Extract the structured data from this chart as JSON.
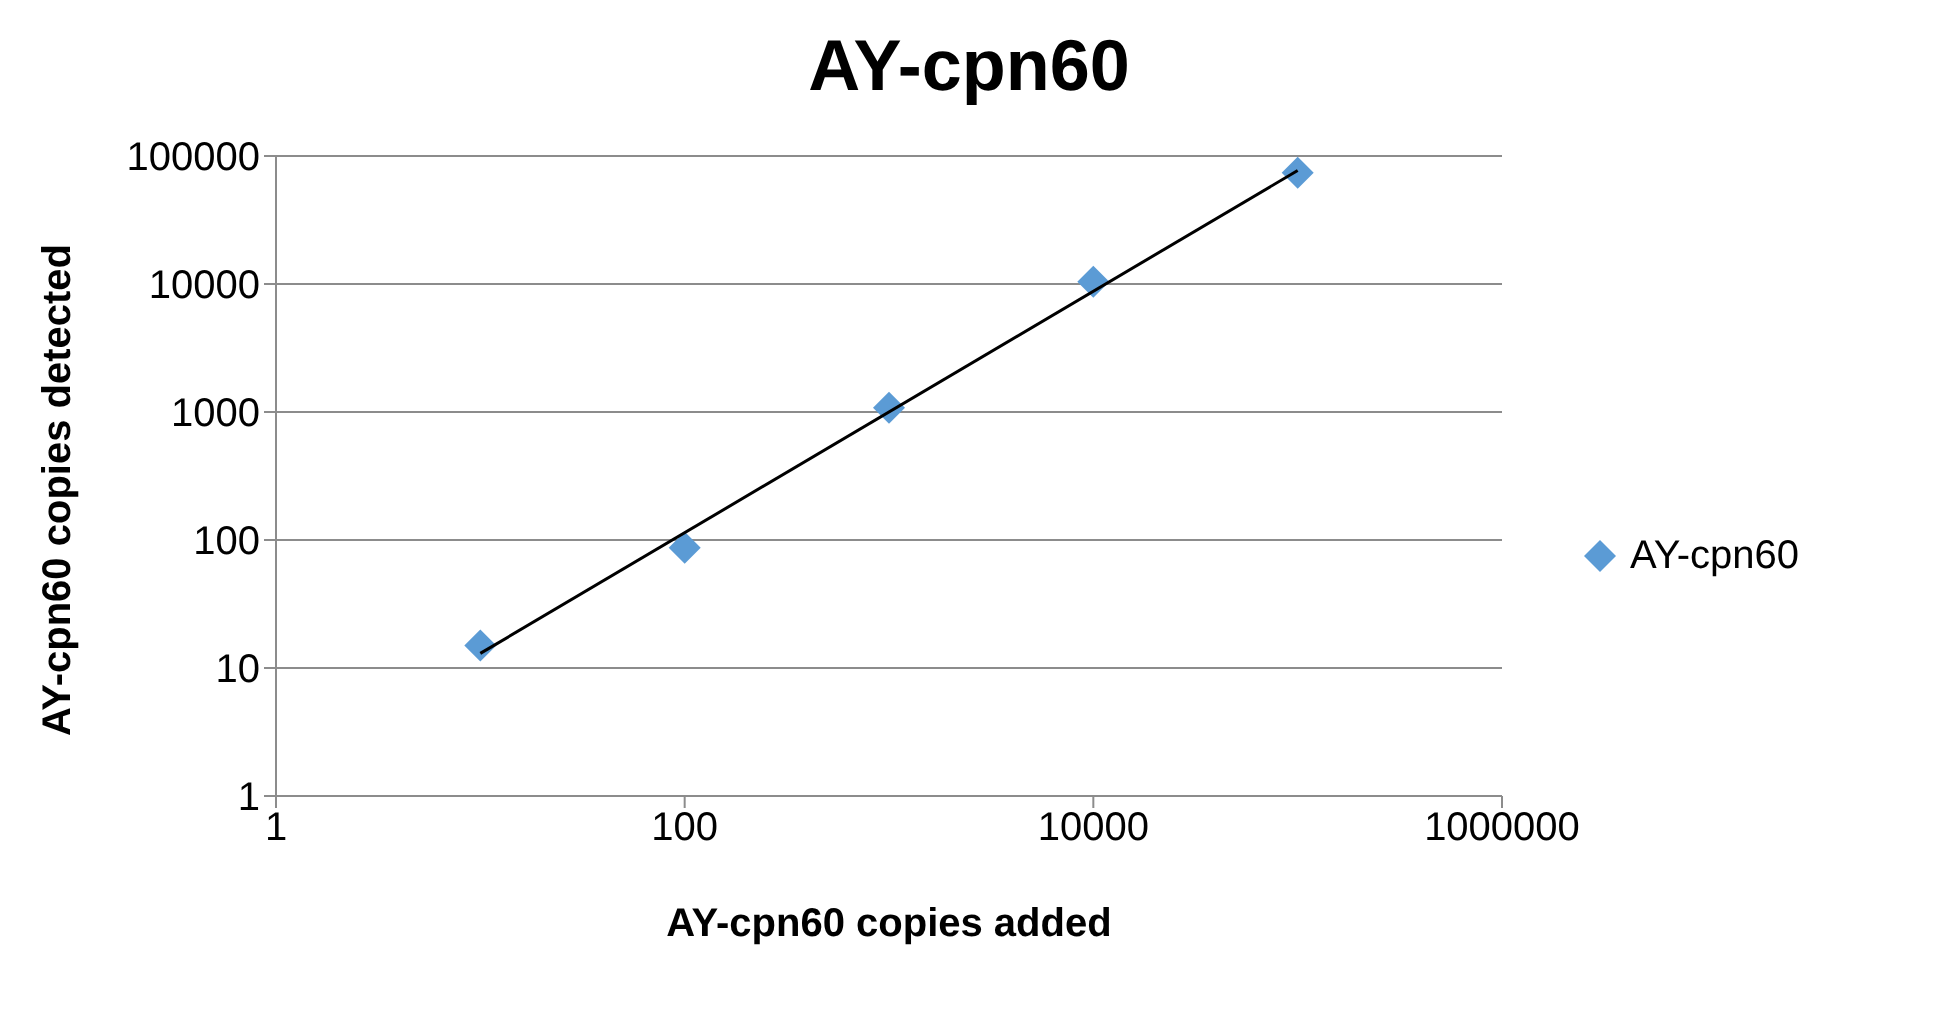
{
  "chart_data": {
    "type": "scatter",
    "title": "AY-cpn60",
    "xlabel": "AY-cpn60 copies added",
    "ylabel": "AY-cpn60 copies detected",
    "log": "xy",
    "xlim": [
      1,
      1000000
    ],
    "xticks": [
      1,
      100,
      10000,
      1000000
    ],
    "ylim": [
      1,
      100000
    ],
    "yticks": [
      1,
      10,
      100,
      1000,
      10000,
      100000
    ],
    "grid": "y",
    "legend": "right",
    "marker": "diamond",
    "x": [
      10,
      100,
      1000,
      10000,
      100000
    ],
    "series": [
      {
        "name": "AY-cpn60",
        "color": "#5b9bd5",
        "values": [
          15,
          87,
          1080,
          10400,
          74000
        ]
      },
      {
        "type": "line",
        "color": "#000000",
        "x": [
          10,
          100000
        ],
        "values": [
          13,
          77000
        ],
        "marker": "none"
      }
    ]
  }
}
